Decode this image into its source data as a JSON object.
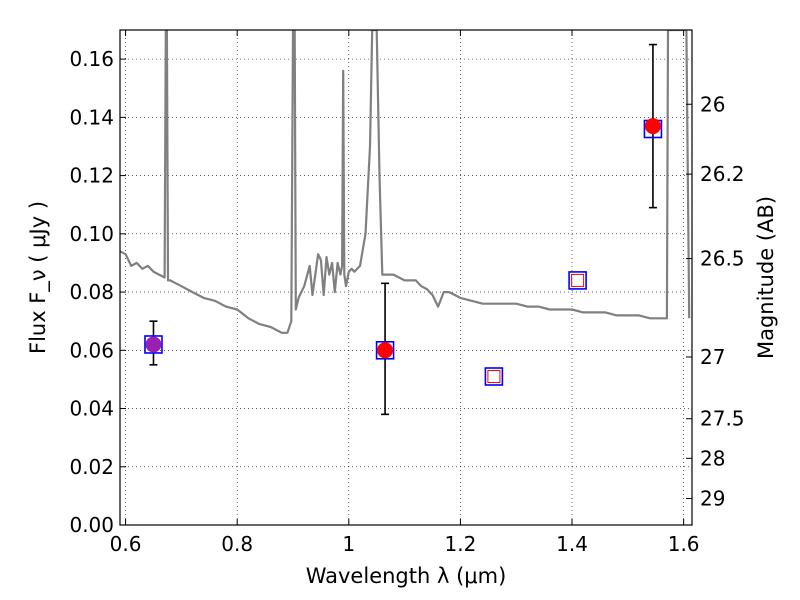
{
  "chart_data": {
    "type": "scatter",
    "title": "",
    "xlabel": "Wavelength  λ (μm)",
    "ylabel": "Flux  F_ν  ( μJy )",
    "y2label": "Magnitude (AB)",
    "xlim": [
      0.59,
      1.615
    ],
    "ylim": [
      0.0,
      0.17
    ],
    "grid": true,
    "x_ticks": [
      0.6,
      0.8,
      1.0,
      1.2,
      1.4,
      1.6
    ],
    "x_tick_labels": [
      "0.6",
      "0.8",
      "1",
      "1.2",
      "1.4",
      "1.6"
    ],
    "y_ticks": [
      0.0,
      0.02,
      0.04,
      0.06,
      0.08,
      0.1,
      0.12,
      0.14,
      0.16
    ],
    "y_tick_labels": [
      "0.00",
      "0.02",
      "0.04",
      "0.06",
      "0.08",
      "0.10",
      "0.12",
      "0.14",
      "0.16"
    ],
    "y2_ticks": [
      {
        "label": "26",
        "flux": 0.1445
      },
      {
        "label": "26.2",
        "flux": 0.1205
      },
      {
        "label": "26.5",
        "flux": 0.0915
      },
      {
        "label": "27",
        "flux": 0.0577
      },
      {
        "label": "27.5",
        "flux": 0.0365
      },
      {
        "label": "28",
        "flux": 0.0229
      },
      {
        "label": "29",
        "flux": 0.0091
      }
    ],
    "series": [
      {
        "kind": "line",
        "color": "#808080",
        "points": [
          [
            0.59,
            0.094
          ],
          [
            0.6,
            0.093
          ],
          [
            0.61,
            0.089
          ],
          [
            0.62,
            0.09
          ],
          [
            0.63,
            0.088
          ],
          [
            0.64,
            0.089
          ],
          [
            0.65,
            0.087
          ],
          [
            0.66,
            0.086
          ],
          [
            0.67,
            0.085
          ],
          [
            0.672,
            0.17
          ],
          [
            0.674,
            0.17
          ],
          [
            0.676,
            0.084
          ],
          [
            0.68,
            0.084
          ],
          [
            0.69,
            0.083
          ],
          [
            0.7,
            0.082
          ],
          [
            0.72,
            0.08
          ],
          [
            0.74,
            0.078
          ],
          [
            0.76,
            0.077
          ],
          [
            0.78,
            0.075
          ],
          [
            0.8,
            0.074
          ],
          [
            0.82,
            0.071
          ],
          [
            0.84,
            0.069
          ],
          [
            0.86,
            0.068
          ],
          [
            0.88,
            0.066
          ],
          [
            0.89,
            0.066
          ],
          [
            0.897,
            0.07
          ],
          [
            0.9,
            0.17
          ],
          [
            0.903,
            0.17
          ],
          [
            0.905,
            0.074
          ],
          [
            0.91,
            0.078
          ],
          [
            0.92,
            0.082
          ],
          [
            0.93,
            0.089
          ],
          [
            0.935,
            0.079
          ],
          [
            0.945,
            0.093
          ],
          [
            0.95,
            0.091
          ],
          [
            0.955,
            0.079
          ],
          [
            0.96,
            0.092
          ],
          [
            0.965,
            0.086
          ],
          [
            0.97,
            0.09
          ],
          [
            0.975,
            0.08
          ],
          [
            0.98,
            0.09
          ],
          [
            0.985,
            0.086
          ],
          [
            0.988,
            0.089
          ],
          [
            0.99,
            0.156
          ],
          [
            0.992,
            0.086
          ],
          [
            0.995,
            0.082
          ],
          [
            1.0,
            0.087
          ],
          [
            1.005,
            0.088
          ],
          [
            1.01,
            0.087
          ],
          [
            1.02,
            0.089
          ],
          [
            1.03,
            0.1
          ],
          [
            1.038,
            0.13
          ],
          [
            1.042,
            0.17
          ],
          [
            1.05,
            0.17
          ],
          [
            1.055,
            0.12
          ],
          [
            1.06,
            0.086
          ],
          [
            1.07,
            0.086
          ],
          [
            1.08,
            0.086
          ],
          [
            1.1,
            0.084
          ],
          [
            1.12,
            0.084
          ],
          [
            1.13,
            0.082
          ],
          [
            1.14,
            0.081
          ],
          [
            1.15,
            0.079
          ],
          [
            1.16,
            0.075
          ],
          [
            1.17,
            0.08
          ],
          [
            1.18,
            0.08
          ],
          [
            1.2,
            0.078
          ],
          [
            1.22,
            0.077
          ],
          [
            1.24,
            0.076
          ],
          [
            1.26,
            0.076
          ],
          [
            1.28,
            0.076
          ],
          [
            1.3,
            0.076
          ],
          [
            1.32,
            0.075
          ],
          [
            1.34,
            0.075
          ],
          [
            1.36,
            0.074
          ],
          [
            1.38,
            0.074
          ],
          [
            1.4,
            0.074
          ],
          [
            1.42,
            0.073
          ],
          [
            1.44,
            0.073
          ],
          [
            1.46,
            0.073
          ],
          [
            1.48,
            0.072
          ],
          [
            1.5,
            0.072
          ],
          [
            1.52,
            0.072
          ],
          [
            1.54,
            0.071
          ],
          [
            1.56,
            0.071
          ],
          [
            1.57,
            0.071
          ],
          [
            1.572,
            0.17
          ],
          [
            1.605,
            0.17
          ],
          [
            1.61,
            0.071
          ]
        ]
      },
      {
        "kind": "open-square",
        "color": "#0000ff",
        "points": [
          [
            0.65,
            0.062
          ],
          [
            1.065,
            0.06
          ],
          [
            1.26,
            0.051
          ],
          [
            1.41,
            0.084
          ],
          [
            1.545,
            0.136
          ]
        ]
      },
      {
        "kind": "small-open-square",
        "color": "#ff0000",
        "points": [
          [
            1.26,
            0.051
          ],
          [
            1.41,
            0.084
          ]
        ]
      },
      {
        "kind": "filled-circle",
        "points": [
          {
            "x": 0.65,
            "y": 0.062,
            "color": "#9b1fb3",
            "yerr": [
              0.055,
              0.07
            ]
          },
          {
            "x": 1.065,
            "y": 0.06,
            "color": "#ff0000",
            "yerr": [
              0.038,
              0.083
            ]
          },
          {
            "x": 1.545,
            "y": 0.137,
            "color": "#ff0000",
            "yerr": [
              0.109,
              0.165
            ]
          }
        ]
      }
    ]
  }
}
